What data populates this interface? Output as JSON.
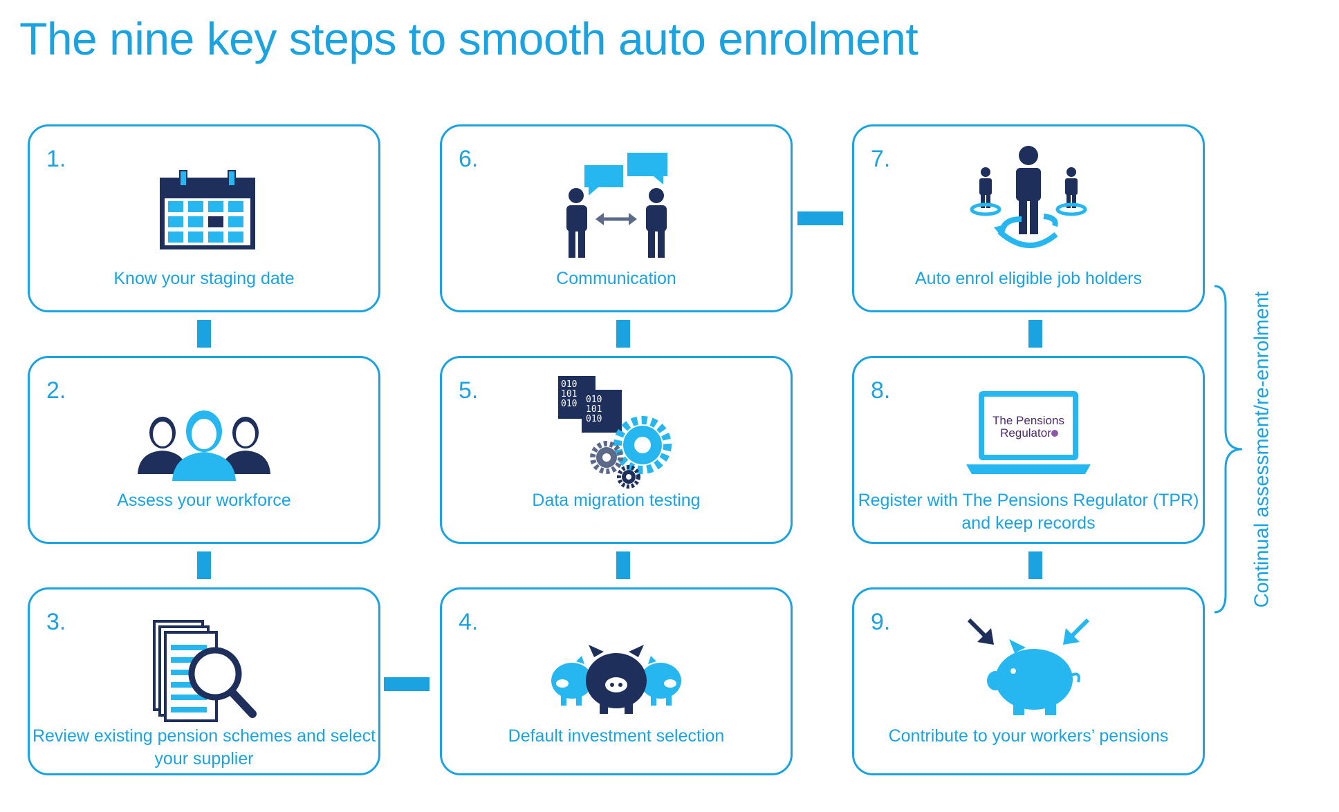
{
  "title": "The nine key steps to smooth auto enrolment",
  "side_label": "Continual assessment/re-enrolment",
  "colors": {
    "accent": "#1aa3e0",
    "dark_navy": "#1d2f5a",
    "light_blue": "#27b7f0"
  },
  "steps": [
    {
      "number": "1.",
      "caption": "Know your staging date",
      "icon": "calendar-icon"
    },
    {
      "number": "2.",
      "caption": "Assess your workforce",
      "icon": "people-group-icon"
    },
    {
      "number": "3.",
      "caption": "Review existing pension schemes and select your supplier",
      "icon": "document-search-icon"
    },
    {
      "number": "4.",
      "caption": "Default investment selection",
      "icon": "piggy-banks-icon"
    },
    {
      "number": "5.",
      "caption": "Data migration testing",
      "icon": "data-gears-icon"
    },
    {
      "number": "6.",
      "caption": "Communication",
      "icon": "conversation-icon"
    },
    {
      "number": "7.",
      "caption": "Auto enrol eligible job holders",
      "icon": "enrol-people-icon"
    },
    {
      "number": "8.",
      "caption": "Register with The Pensions Regulator (TPR) and keep records",
      "icon": "laptop-regulator-icon"
    },
    {
      "number": "9.",
      "caption": "Contribute to your workers’ pensions",
      "icon": "piggy-bank-contribute-icon"
    }
  ],
  "tpr_logo_text": {
    "line1": "The Pensions",
    "line2": "Regulator"
  },
  "binary_text": {
    "row1": "010",
    "row2": "101",
    "row3": "010"
  }
}
